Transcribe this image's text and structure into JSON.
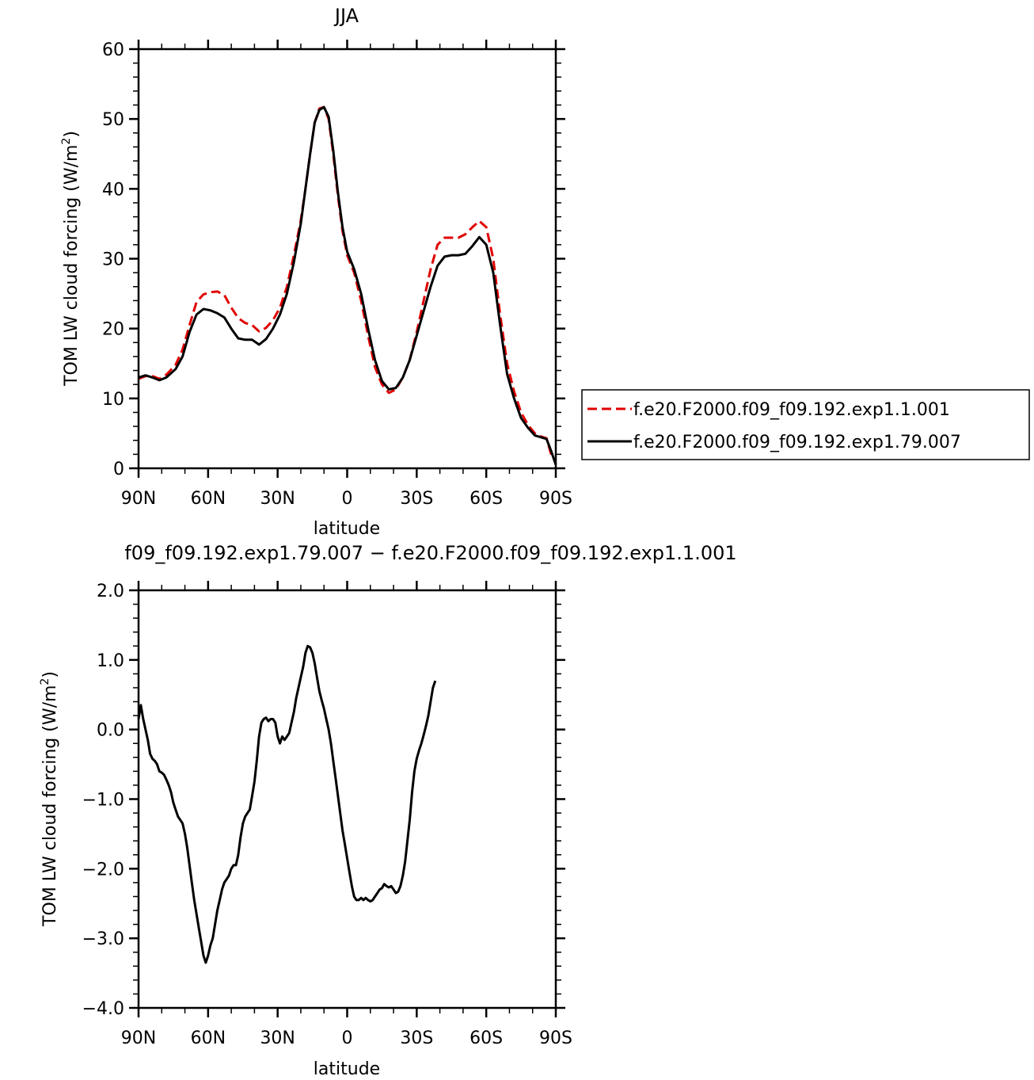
{
  "chart_data": [
    {
      "type": "line",
      "title": "JJA",
      "xlabel": "latitude",
      "ylabel": "TOM LW cloud forcing (W/m",
      "ylabel_sup": "2",
      "ylabel_end": ")",
      "xlim": [
        90,
        -90
      ],
      "ylim": [
        0,
        60
      ],
      "yticks": [
        0,
        10,
        20,
        30,
        40,
        50,
        60
      ],
      "ytick_labels": [
        "0",
        "10",
        "20",
        "30",
        "40",
        "50",
        "60"
      ],
      "xticks": [
        90,
        60,
        30,
        0,
        -30,
        -60,
        -90
      ],
      "xtick_labels": [
        "90N",
        "60N",
        "30N",
        "0",
        "30S",
        "60S",
        "90S"
      ],
      "legend_position": "right",
      "series": [
        {
          "name": "f.e20.F2000.f09_f09.192.exp1.1.001",
          "color": "#e00000",
          "style": "dashed",
          "points": [
            [
              90,
              12.8
            ],
            [
              87,
              13.2
            ],
            [
              84,
              13.2
            ],
            [
              81,
              12.8
            ],
            [
              78,
              13.4
            ],
            [
              74,
              14.8
            ],
            [
              71,
              17.0
            ],
            [
              68,
              20.5
            ],
            [
              65,
              23.8
            ],
            [
              62,
              24.9
            ],
            [
              59,
              25.2
            ],
            [
              56,
              25.3
            ],
            [
              53,
              24.8
            ],
            [
              50,
              23.0
            ],
            [
              47,
              21.5
            ],
            [
              44,
              20.8
            ],
            [
              41,
              20.5
            ],
            [
              38,
              19.6
            ],
            [
              35,
              20.1
            ],
            [
              32,
              21.2
            ],
            [
              29,
              23.0
            ],
            [
              26,
              26.0
            ],
            [
              23,
              30.5
            ],
            [
              20,
              35.5
            ],
            [
              18,
              40.0
            ],
            [
              16,
              45.0
            ],
            [
              14,
              49.5
            ],
            [
              12,
              51.5
            ],
            [
              10,
              51.7
            ],
            [
              8,
              50.0
            ],
            [
              6,
              45.0
            ],
            [
              4,
              39.0
            ],
            [
              2,
              34.0
            ],
            [
              0,
              30.5
            ],
            [
              -3,
              28.0
            ],
            [
              -6,
              24.0
            ],
            [
              -9,
              19.0
            ],
            [
              -12,
              14.5
            ],
            [
              -15,
              12.0
            ],
            [
              -18,
              10.8
            ],
            [
              -21,
              11.3
            ],
            [
              -24,
              13.0
            ],
            [
              -27,
              15.5
            ],
            [
              -30,
              19.5
            ],
            [
              -33,
              24.0
            ],
            [
              -36,
              28.5
            ],
            [
              -39,
              32.0
            ],
            [
              -42,
              33.0
            ],
            [
              -45,
              33.0
            ],
            [
              -48,
              33.0
            ],
            [
              -51,
              33.5
            ],
            [
              -54,
              34.5
            ],
            [
              -57,
              35.4
            ],
            [
              -60,
              34.5
            ],
            [
              -63,
              30.0
            ],
            [
              -66,
              22.0
            ],
            [
              -69,
              15.0
            ],
            [
              -72,
              11.0
            ],
            [
              -75,
              8.0
            ],
            [
              -78,
              6.2
            ],
            [
              -81,
              5.0
            ],
            [
              -84,
              4.5
            ],
            [
              -86,
              4.3
            ],
            [
              -88,
              2.0
            ],
            [
              -90,
              1.0
            ]
          ]
        },
        {
          "name": "f.e20.F2000.f09_f09.192.exp1.79.007",
          "color": "#000000",
          "style": "solid",
          "points": [
            [
              90,
              13.0
            ],
            [
              87,
              13.3
            ],
            [
              84,
              13.0
            ],
            [
              81,
              12.6
            ],
            [
              78,
              13.0
            ],
            [
              74,
              14.2
            ],
            [
              71,
              16.0
            ],
            [
              68,
              19.5
            ],
            [
              65,
              22.0
            ],
            [
              62,
              22.8
            ],
            [
              59,
              22.6
            ],
            [
              56,
              22.2
            ],
            [
              53,
              21.6
            ],
            [
              50,
              20.0
            ],
            [
              47,
              18.6
            ],
            [
              44,
              18.4
            ],
            [
              41,
              18.4
            ],
            [
              38,
              17.7
            ],
            [
              35,
              18.5
            ],
            [
              32,
              20.0
            ],
            [
              29,
              22.0
            ],
            [
              26,
              25.0
            ],
            [
              23,
              29.5
            ],
            [
              20,
              35.0
            ],
            [
              18,
              40.0
            ],
            [
              16,
              45.0
            ],
            [
              14,
              49.5
            ],
            [
              12,
              51.3
            ],
            [
              10,
              51.7
            ],
            [
              8,
              50.3
            ],
            [
              6,
              45.5
            ],
            [
              4,
              39.5
            ],
            [
              2,
              34.5
            ],
            [
              0,
              31.0
            ],
            [
              -3,
              28.5
            ],
            [
              -6,
              25.0
            ],
            [
              -9,
              20.0
            ],
            [
              -12,
              15.5
            ],
            [
              -15,
              12.5
            ],
            [
              -18,
              11.3
            ],
            [
              -21,
              11.5
            ],
            [
              -24,
              13.0
            ],
            [
              -27,
              15.5
            ],
            [
              -30,
              19.0
            ],
            [
              -33,
              22.5
            ],
            [
              -36,
              26.0
            ],
            [
              -39,
              29.0
            ],
            [
              -42,
              30.3
            ],
            [
              -45,
              30.5
            ],
            [
              -48,
              30.5
            ],
            [
              -51,
              30.7
            ],
            [
              -54,
              31.8
            ],
            [
              -57,
              33.1
            ],
            [
              -60,
              32.0
            ],
            [
              -63,
              28.0
            ],
            [
              -66,
              20.5
            ],
            [
              -69,
              13.5
            ],
            [
              -72,
              10.0
            ],
            [
              -75,
              7.2
            ],
            [
              -78,
              5.8
            ],
            [
              -81,
              4.7
            ],
            [
              -84,
              4.4
            ],
            [
              -86,
              4.2
            ],
            [
              -88,
              2.5
            ],
            [
              -90,
              0.5
            ]
          ]
        }
      ]
    },
    {
      "type": "line",
      "title": "f09_f09.192.exp1.79.007 − f.e20.F2000.f09_f09.192.exp1.1.001",
      "xlabel": "latitude",
      "ylabel": "TOM LW cloud forcing (W/m",
      "ylabel_sup": "2",
      "ylabel_end": ")",
      "xlim": [
        90,
        -90
      ],
      "ylim": [
        -4.0,
        2.0
      ],
      "yticks": [
        -4.0,
        -3.0,
        -2.0,
        -1.0,
        0.0,
        1.0,
        2.0
      ],
      "ytick_labels": [
        "−4.0",
        "−3.0",
        "−2.0",
        "−1.0",
        "0.0",
        "1.0",
        "2.0"
      ],
      "xticks": [
        90,
        60,
        30,
        0,
        -30,
        -60,
        -90
      ],
      "xtick_labels": [
        "90N",
        "60N",
        "30N",
        "0",
        "30S",
        "60S",
        "90S"
      ],
      "series": [
        {
          "color": "#000000",
          "style": "solid",
          "points": [
            [
              90,
              0.15
            ],
            [
              89,
              0.35
            ],
            [
              88,
              0.15
            ],
            [
              87,
              0.0
            ],
            [
              86,
              -0.15
            ],
            [
              85,
              -0.35
            ],
            [
              84,
              -0.42
            ],
            [
              83,
              -0.45
            ],
            [
              82,
              -0.5
            ],
            [
              81,
              -0.6
            ],
            [
              80,
              -0.62
            ],
            [
              79,
              -0.65
            ],
            [
              78,
              -0.72
            ],
            [
              77,
              -0.8
            ],
            [
              76,
              -0.9
            ],
            [
              75,
              -1.05
            ],
            [
              74,
              -1.15
            ],
            [
              73,
              -1.25
            ],
            [
              72,
              -1.3
            ],
            [
              71,
              -1.35
            ],
            [
              70,
              -1.5
            ],
            [
              69,
              -1.7
            ],
            [
              68,
              -1.95
            ],
            [
              67,
              -2.2
            ],
            [
              66,
              -2.45
            ],
            [
              65,
              -2.65
            ],
            [
              64,
              -2.85
            ],
            [
              63,
              -3.05
            ],
            [
              62,
              -3.25
            ],
            [
              61,
              -3.35
            ],
            [
              60,
              -3.25
            ],
            [
              59,
              -3.1
            ],
            [
              58,
              -3.0
            ],
            [
              57,
              -2.8
            ],
            [
              56,
              -2.6
            ],
            [
              55,
              -2.45
            ],
            [
              54,
              -2.3
            ],
            [
              53,
              -2.2
            ],
            [
              52,
              -2.15
            ],
            [
              51,
              -2.1
            ],
            [
              50,
              -2.0
            ],
            [
              49,
              -1.95
            ],
            [
              48,
              -1.95
            ],
            [
              47,
              -1.8
            ],
            [
              46,
              -1.55
            ],
            [
              45,
              -1.35
            ],
            [
              44,
              -1.25
            ],
            [
              43,
              -1.2
            ],
            [
              42,
              -1.15
            ],
            [
              41,
              -0.95
            ],
            [
              40,
              -0.75
            ],
            [
              39,
              -0.45
            ],
            [
              38,
              -0.1
            ],
            [
              37,
              0.1
            ],
            [
              36,
              0.15
            ],
            [
              35,
              0.17
            ],
            [
              34,
              0.12
            ],
            [
              33,
              0.15
            ],
            [
              32,
              0.15
            ],
            [
              31,
              0.1
            ],
            [
              30,
              -0.1
            ],
            [
              29,
              -0.2
            ],
            [
              28,
              -0.1
            ],
            [
              27,
              -0.15
            ],
            [
              26,
              -0.1
            ],
            [
              25,
              -0.05
            ],
            [
              24,
              0.1
            ],
            [
              23,
              0.25
            ],
            [
              22,
              0.45
            ],
            [
              21,
              0.6
            ],
            [
              20,
              0.75
            ],
            [
              19,
              0.9
            ],
            [
              18,
              1.1
            ],
            [
              17,
              1.2
            ],
            [
              16,
              1.18
            ],
            [
              15,
              1.1
            ],
            [
              14,
              0.95
            ],
            [
              13,
              0.75
            ],
            [
              12,
              0.55
            ],
            [
              11,
              0.42
            ],
            [
              10,
              0.3
            ],
            [
              9,
              0.15
            ],
            [
              8,
              0.0
            ],
            [
              7,
              -0.2
            ],
            [
              6,
              -0.45
            ],
            [
              5,
              -0.7
            ],
            [
              4,
              -0.95
            ],
            [
              3,
              -1.2
            ],
            [
              2,
              -1.45
            ],
            [
              1,
              -1.65
            ],
            [
              0,
              -1.85
            ],
            [
              -1,
              -2.05
            ],
            [
              -2,
              -2.25
            ],
            [
              -3,
              -2.4
            ],
            [
              -4,
              -2.45
            ],
            [
              -5,
              -2.45
            ],
            [
              -6,
              -2.42
            ],
            [
              -7,
              -2.45
            ],
            [
              -8,
              -2.42
            ],
            [
              -9,
              -2.45
            ],
            [
              -10,
              -2.47
            ],
            [
              -11,
              -2.45
            ],
            [
              -12,
              -2.4
            ],
            [
              -13,
              -2.35
            ],
            [
              -14,
              -2.3
            ],
            [
              -15,
              -2.28
            ],
            [
              -16,
              -2.22
            ],
            [
              -17,
              -2.25
            ],
            [
              -18,
              -2.27
            ],
            [
              -19,
              -2.25
            ],
            [
              -20,
              -2.3
            ],
            [
              -21,
              -2.35
            ],
            [
              -22,
              -2.33
            ],
            [
              -23,
              -2.25
            ],
            [
              -24,
              -2.1
            ],
            [
              -25,
              -1.9
            ],
            [
              -26,
              -1.6
            ],
            [
              -27,
              -1.3
            ],
            [
              -28,
              -0.9
            ],
            [
              -29,
              -0.6
            ],
            [
              -30,
              -0.42
            ],
            [
              -31,
              -0.3
            ],
            [
              -32,
              -0.2
            ],
            [
              -33,
              -0.08
            ],
            [
              -34,
              0.05
            ],
            [
              -35,
              0.2
            ],
            [
              -36,
              0.4
            ],
            [
              -37,
              0.6
            ],
            [
              -38,
              0.7
            ]
          ]
        }
      ]
    }
  ]
}
